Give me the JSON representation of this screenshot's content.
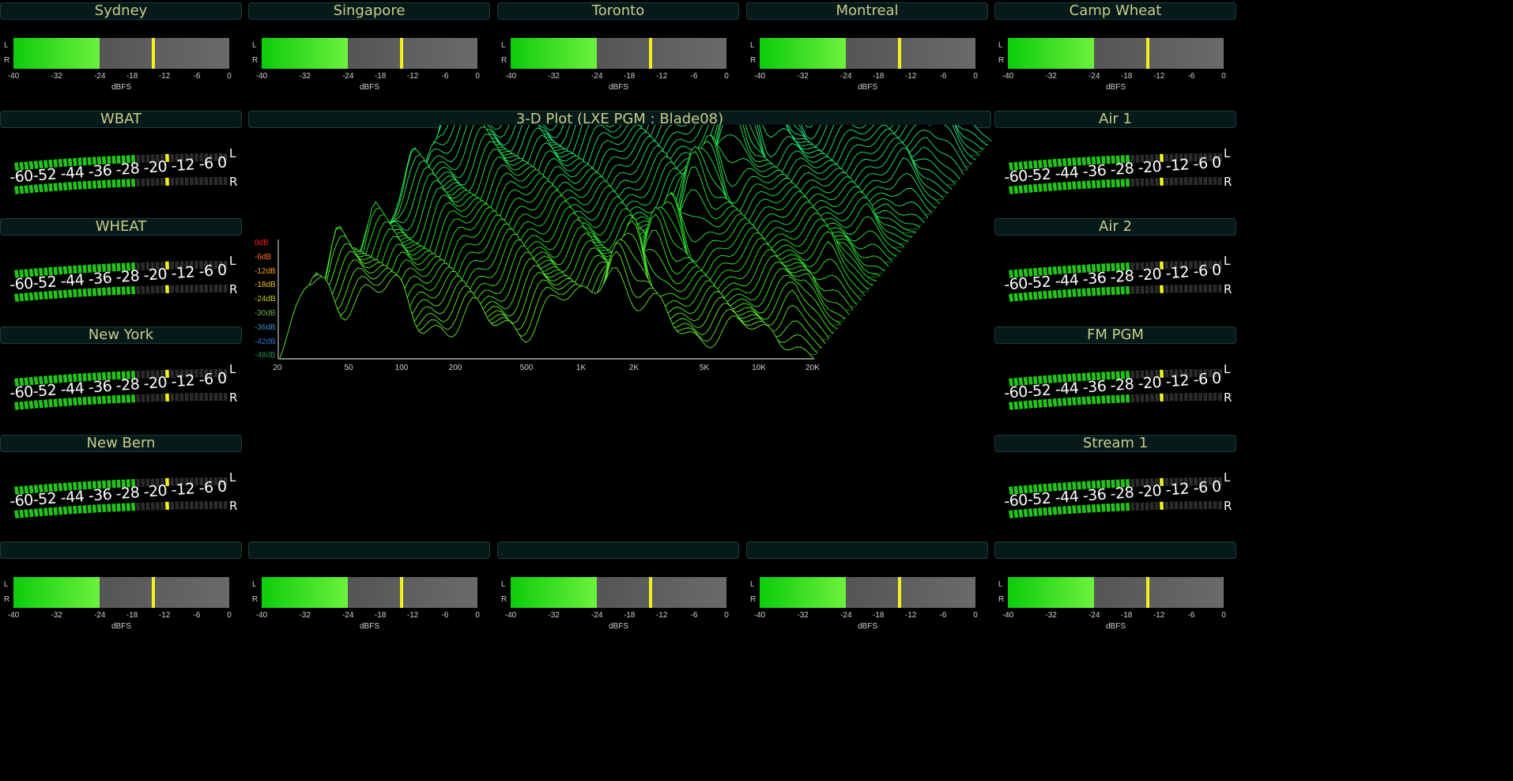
{
  "top_meters": [
    {
      "title": "Sydney"
    },
    {
      "title": "Singapore"
    },
    {
      "title": "Toronto"
    },
    {
      "title": "Montreal"
    },
    {
      "title": "Camp Wheat"
    }
  ],
  "bottom_meters": [
    {
      "title": ""
    },
    {
      "title": ""
    },
    {
      "title": ""
    },
    {
      "title": ""
    },
    {
      "title": ""
    }
  ],
  "left_meters": [
    {
      "title": "WBAT"
    },
    {
      "title": "WHEAT"
    },
    {
      "title": "New York"
    },
    {
      "title": "New Bern"
    }
  ],
  "right_meters": [
    {
      "title": "Air 1"
    },
    {
      "title": "Air 2"
    },
    {
      "title": "FM PGM"
    },
    {
      "title": "Stream 1"
    }
  ],
  "hmeter": {
    "channel_l": "L",
    "channel_r": "R",
    "ticks": [
      "-40",
      "-32",
      "-24",
      "-18",
      "-12",
      "-6",
      "0"
    ],
    "unit": "dBFS",
    "level_db": -24,
    "peak_db": -14
  },
  "arcmeter": {
    "scale": "-60-52 -44 -36 -28 -20 -12 -6  0",
    "channel_l": "L",
    "channel_r": "R",
    "level_fraction": 0.57,
    "peak_fraction": 0.73
  },
  "plot3d": {
    "title": "3-D Plot  (LXE PGM : Blade08)",
    "db_labels": [
      "0dB",
      "-6dB",
      "-12dB",
      "-18dB",
      "-24dB",
      "-30dB",
      "-36dB",
      "-42dB",
      "-48dB"
    ],
    "db_colors": [
      "#ff2020",
      "#ff6a20",
      "#ff9a20",
      "#e8c020",
      "#c8c820",
      "#6aa84a",
      "#3a90c8",
      "#2a70d8",
      "#2a8a4a"
    ],
    "freq_labels": [
      "20",
      "50",
      "100",
      "200",
      "500",
      "1K",
      "2K",
      "5K",
      "10K",
      "20K"
    ]
  }
}
